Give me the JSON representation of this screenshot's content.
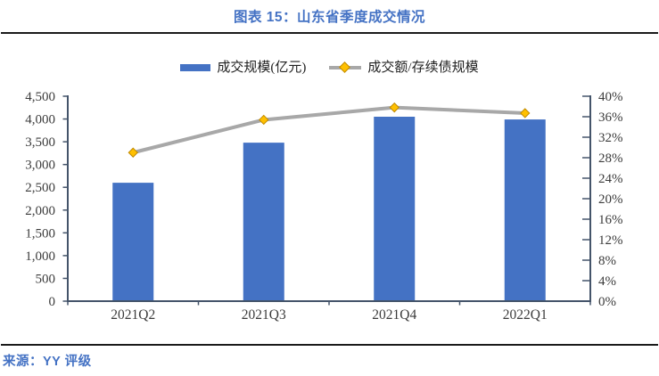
{
  "page": {
    "title": "图表 15：山东省季度成交情况",
    "source": "来源：YY 评级"
  },
  "chart_data": {
    "type": "combo-bar-line",
    "title": "图表 15：山东省季度成交情况",
    "categories": [
      "2021Q2",
      "2021Q3",
      "2021Q4",
      "2022Q1"
    ],
    "series": [
      {
        "name": "成交规模(亿元)",
        "type": "bar",
        "axis": "left",
        "values": [
          2600,
          3480,
          4050,
          3990
        ]
      },
      {
        "name": "成交额/存续债规模",
        "type": "line",
        "axis": "right",
        "unit": "%",
        "values": [
          29.0,
          35.4,
          37.8,
          36.7
        ]
      }
    ],
    "left_axis": {
      "min": 0,
      "max": 4500,
      "step": 500,
      "tick_labels": [
        "0",
        "500",
        "1,000",
        "1,500",
        "2,000",
        "2,500",
        "3,000",
        "3,500",
        "4,000",
        "4,500"
      ]
    },
    "right_axis": {
      "min": 0,
      "max": 40,
      "step": 4,
      "tick_labels": [
        "0%",
        "4%",
        "8%",
        "12%",
        "16%",
        "20%",
        "24%",
        "28%",
        "32%",
        "36%",
        "40%"
      ]
    },
    "legend_position": "top",
    "grid": false,
    "colors": {
      "bar": "#4472C4",
      "line": "#A8A8A8",
      "marker": "#FFC000",
      "marker_border": "#C08A00",
      "axis": "#44546A",
      "tick_text": "#3b3b3b",
      "title": "#4472C4",
      "source": "#4472C4",
      "divider": "#1a1a1a"
    }
  }
}
